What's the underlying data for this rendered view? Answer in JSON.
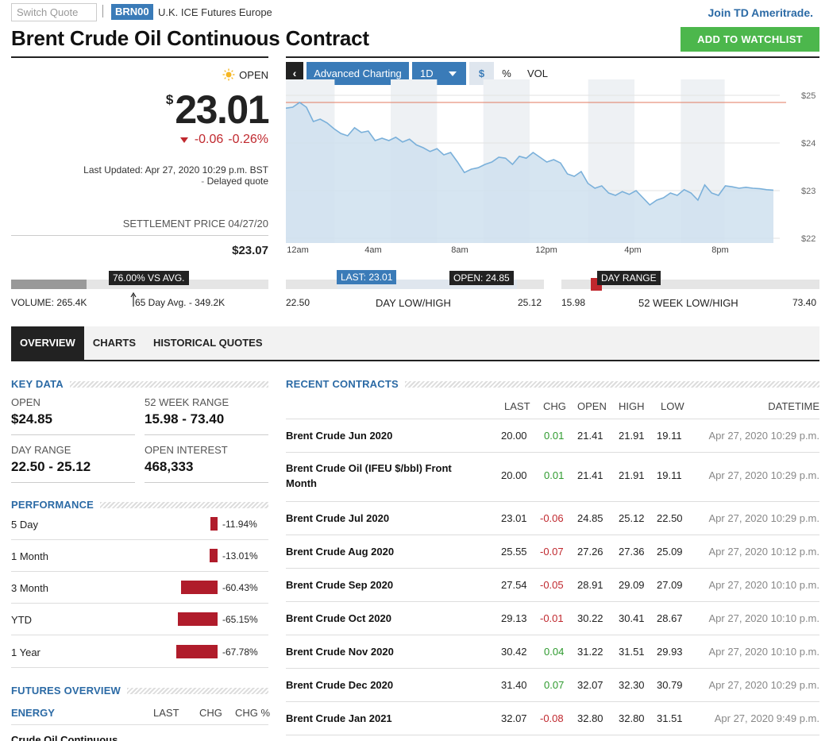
{
  "header": {
    "switch_placeholder": "Switch Quote",
    "ticker": "BRN00",
    "exchange": "U.K. ICE Futures Europe",
    "join_link": "Join TD Ameritrade.",
    "title": "Brent Crude Oil Continuous Contract",
    "watchlist_button": "ADD TO WATCHLIST"
  },
  "quote": {
    "status": "OPEN",
    "currency": "$",
    "price": "23.01",
    "change": "-0.06",
    "change_pct": "-0.26%",
    "last_updated": "Last Updated: Apr 27, 2020 10:29 p.m. BST",
    "delayed": "Delayed quote",
    "settlement_label": "SETTLEMENT PRICE 04/27/20",
    "settlement_value": "$23.07",
    "volume_badge": "76.00% VS AVG.",
    "volume_pct": 0.76,
    "volume": "VOLUME: 265.4K",
    "avg_volume": "65 Day Avg. - 349.2K"
  },
  "chart_controls": {
    "back": "‹",
    "advanced": "Advanced Charting",
    "interval": "1D",
    "dollar": "$",
    "percent": "%",
    "volume": "VOL"
  },
  "chart_data": {
    "type": "area",
    "x_ticks": [
      "12am",
      "4am",
      "8am",
      "12pm",
      "4pm",
      "8pm"
    ],
    "y_ticks": [
      "$25",
      "$24",
      "$23",
      "$22"
    ],
    "ylim": [
      21.9,
      25.2
    ],
    "reference_line": 24.85,
    "series": [
      {
        "values": [
          24.73,
          24.75,
          24.85,
          24.75,
          24.45,
          24.5,
          24.42,
          24.3,
          24.2,
          24.15,
          24.32,
          24.22,
          24.25,
          24.05,
          24.1,
          24.05,
          24.12,
          24.02,
          24.08,
          23.96,
          23.9,
          23.82,
          23.88,
          23.75,
          23.8,
          23.6,
          23.38,
          23.45,
          23.48,
          23.55,
          23.6,
          23.7,
          23.68,
          23.55,
          23.72,
          23.68,
          23.8,
          23.7,
          23.6,
          23.65,
          23.58,
          23.35,
          23.3,
          23.4,
          23.15,
          23.05,
          23.1,
          22.95,
          22.9,
          22.98,
          22.92,
          23.0,
          22.85,
          22.7,
          22.8,
          22.85,
          22.95,
          22.9,
          23.02,
          22.95,
          22.8,
          23.12,
          22.95,
          22.9,
          23.1,
          23.08,
          23.05,
          23.07,
          23.05,
          23.04,
          23.02,
          23.01
        ]
      }
    ]
  },
  "day_range": {
    "last_badge": "LAST: 23.01",
    "open_badge": "OPEN: 24.85",
    "low": "22.50",
    "label": "DAY LOW/HIGH",
    "high": "25.12"
  },
  "week52": {
    "badge": "DAY RANGE",
    "low": "15.98",
    "label": "52 WEEK LOW/HIGH",
    "high": "73.40"
  },
  "tabs": [
    "OVERVIEW",
    "CHARTS",
    "HISTORICAL QUOTES"
  ],
  "key_data": {
    "title": "KEY DATA",
    "open_label": "OPEN",
    "open_value": "$24.85",
    "range_label": "52 WEEK RANGE",
    "range_value": "15.98 - 73.40",
    "day_label": "DAY RANGE",
    "day_value": "22.50 - 25.12",
    "oi_label": "OPEN INTEREST",
    "oi_value": "468,333"
  },
  "performance": {
    "title": "PERFORMANCE",
    "rows": [
      {
        "label": "5 Day",
        "pct": "-11.94%",
        "value": -11.94
      },
      {
        "label": "1 Month",
        "pct": "-13.01%",
        "value": -13.01
      },
      {
        "label": "3 Month",
        "pct": "-60.43%",
        "value": -60.43
      },
      {
        "label": "YTD",
        "pct": "-65.15%",
        "value": -65.15
      },
      {
        "label": "1 Year",
        "pct": "-67.78%",
        "value": -67.78
      }
    ]
  },
  "futures_overview": {
    "title": "FUTURES OVERVIEW",
    "group": "ENERGY",
    "col_last": "LAST",
    "col_chg": "CHG",
    "col_chg_pct": "CHG %",
    "first_row": "Crude Oil Continuous"
  },
  "recent_contracts": {
    "title": "RECENT CONTRACTS",
    "headers": [
      "LAST",
      "CHG",
      "OPEN",
      "HIGH",
      "LOW",
      "DATETIME"
    ],
    "rows": [
      {
        "name": "Brent Crude Jun 2020",
        "last": "20.00",
        "chg": "0.01",
        "open": "21.41",
        "high": "21.91",
        "low": "19.11",
        "dt": "Apr 27, 2020 10:29 p.m."
      },
      {
        "name": "Brent Crude Oil (IFEU $/bbl) Front Month",
        "last": "20.00",
        "chg": "0.01",
        "open": "21.41",
        "high": "21.91",
        "low": "19.11",
        "dt": "Apr 27, 2020 10:29 p.m."
      },
      {
        "name": "Brent Crude Jul 2020",
        "last": "23.01",
        "chg": "-0.06",
        "open": "24.85",
        "high": "25.12",
        "low": "22.50",
        "dt": "Apr 27, 2020 10:29 p.m."
      },
      {
        "name": "Brent Crude Aug 2020",
        "last": "25.55",
        "chg": "-0.07",
        "open": "27.26",
        "high": "27.36",
        "low": "25.09",
        "dt": "Apr 27, 2020 10:12 p.m."
      },
      {
        "name": "Brent Crude Sep 2020",
        "last": "27.54",
        "chg": "-0.05",
        "open": "28.91",
        "high": "29.09",
        "low": "27.09",
        "dt": "Apr 27, 2020 10:10 p.m."
      },
      {
        "name": "Brent Crude Oct 2020",
        "last": "29.13",
        "chg": "-0.01",
        "open": "30.22",
        "high": "30.41",
        "low": "28.67",
        "dt": "Apr 27, 2020 10:10 p.m."
      },
      {
        "name": "Brent Crude Nov 2020",
        "last": "30.42",
        "chg": "0.04",
        "open": "31.22",
        "high": "31.51",
        "low": "29.93",
        "dt": "Apr 27, 2020 10:10 p.m."
      },
      {
        "name": "Brent Crude Dec 2020",
        "last": "31.40",
        "chg": "0.07",
        "open": "32.07",
        "high": "32.30",
        "low": "30.79",
        "dt": "Apr 27, 2020 10:29 p.m."
      },
      {
        "name": "Brent Crude Jan 2021",
        "last": "32.07",
        "chg": "-0.08",
        "open": "32.80",
        "high": "32.80",
        "low": "31.51",
        "dt": "Apr 27, 2020 9:49 p.m."
      }
    ]
  },
  "colors": {
    "accent": "#3a7bb8",
    "negative": "#c0282e",
    "positive": "#2e9a2e",
    "watchlist": "#4cb74c"
  }
}
